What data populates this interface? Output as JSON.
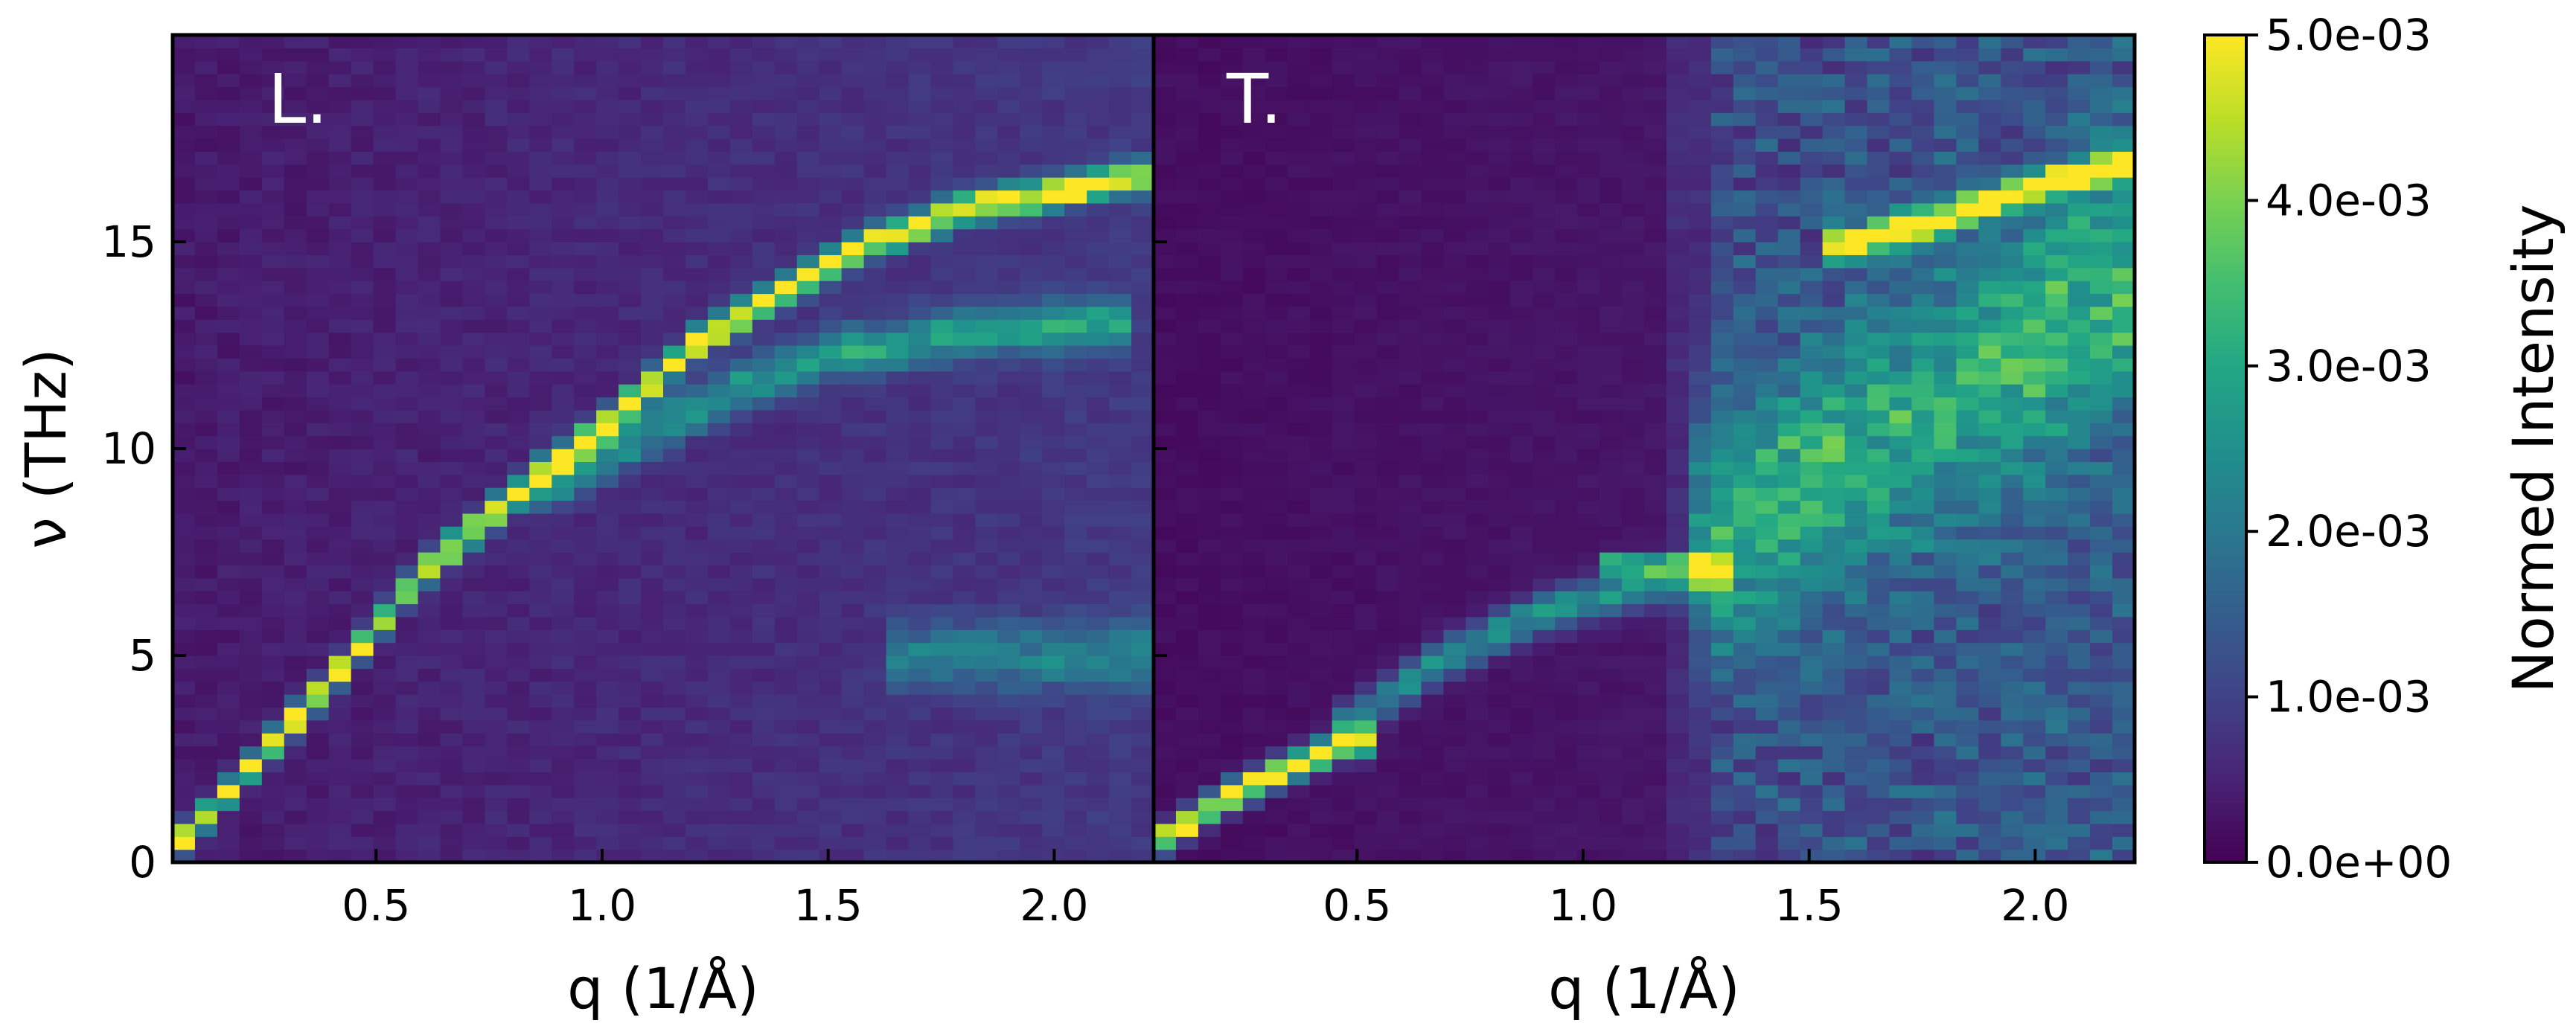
{
  "chart_data": [
    {
      "type": "heatmap",
      "panel_label": "L.",
      "xlabel": "q (1/Å)",
      "ylabel": "ν (THz)",
      "xlim": [
        0.05,
        2.22
      ],
      "ylim": [
        0,
        20
      ],
      "xticks": [
        0.5,
        1.0,
        1.5,
        2.0
      ],
      "xtick_labels": [
        "0.5",
        "1.0",
        "1.5",
        "2.0"
      ],
      "yticks": [
        0,
        5,
        10,
        15
      ],
      "ytick_labels": [
        "0",
        "5",
        "10",
        "15"
      ],
      "features": [
        {
          "kind": "dispersion",
          "points": [
            [
              0.08,
              0.6
            ],
            [
              0.25,
              2.6
            ],
            [
              0.45,
              5.0
            ],
            [
              0.6,
              7.0
            ],
            [
              0.8,
              8.8
            ],
            [
              1.0,
              10.5
            ],
            [
              1.2,
              12.5
            ],
            [
              1.4,
              13.8
            ],
            [
              1.6,
              15.0
            ],
            [
              1.8,
              15.8
            ],
            [
              2.0,
              16.2
            ],
            [
              2.2,
              16.6
            ]
          ],
          "strength": 1.0,
          "width": 0.35
        },
        {
          "kind": "dispersion",
          "points": [
            [
              0.9,
              9.2
            ],
            [
              1.2,
              11.0
            ],
            [
              1.5,
              12.3
            ],
            [
              1.8,
              12.8
            ],
            [
              2.1,
              13.0
            ]
          ],
          "strength": 0.45,
          "width": 0.6
        },
        {
          "kind": "band",
          "points": [
            [
              1.7,
              5.0
            ],
            [
              2.2,
              5.0
            ]
          ],
          "strength": 0.3,
          "width": 0.8
        }
      ]
    },
    {
      "type": "heatmap",
      "panel_label": "T.",
      "xlabel": "q (1/Å)",
      "xlim": [
        0.05,
        2.22
      ],
      "ylim": [
        0,
        20
      ],
      "xticks": [
        0.5,
        1.0,
        1.5,
        2.0
      ],
      "xtick_labels": [
        "0.5",
        "1.0",
        "1.5",
        "2.0"
      ],
      "yticks": [
        0,
        5,
        10,
        15
      ],
      "features": [
        {
          "kind": "dispersion",
          "points": [
            [
              0.05,
              0.4
            ],
            [
              0.2,
              1.5
            ],
            [
              0.35,
              2.3
            ],
            [
              0.48,
              2.9
            ]
          ],
          "strength": 1.0,
          "width": 0.35
        },
        {
          "kind": "dispersion",
          "points": [
            [
              0.48,
              3.3
            ],
            [
              0.7,
              5.0
            ],
            [
              0.9,
              6.0
            ],
            [
              1.1,
              6.6
            ],
            [
              1.3,
              7.0
            ]
          ],
          "strength": 0.45,
          "width": 0.5
        },
        {
          "kind": "dispersion",
          "points": [
            [
              1.08,
              7.2
            ],
            [
              1.25,
              7.2
            ]
          ],
          "strength": 0.8,
          "width": 0.2
        },
        {
          "kind": "dispersion",
          "points": [
            [
              1.6,
              15.0
            ],
            [
              1.8,
              15.6
            ],
            [
              2.0,
              16.3
            ],
            [
              2.22,
              17.0
            ]
          ],
          "strength": 1.0,
          "width": 0.35
        },
        {
          "kind": "band",
          "points": [
            [
              1.3,
              8.0
            ],
            [
              2.22,
              14.0
            ]
          ],
          "strength": 0.4,
          "width": 3.0
        }
      ]
    }
  ],
  "colorbar": {
    "label": "Normed Intensity",
    "vmin": 0.0,
    "vmax": 0.005,
    "ticks": [
      0.0,
      0.001,
      0.002,
      0.003,
      0.004,
      0.005
    ],
    "tick_labels": [
      "0.0e+00",
      "1.0e-03",
      "2.0e-03",
      "3.0e-03",
      "4.0e-03",
      "5.0e-03"
    ],
    "colormap": "viridis"
  }
}
